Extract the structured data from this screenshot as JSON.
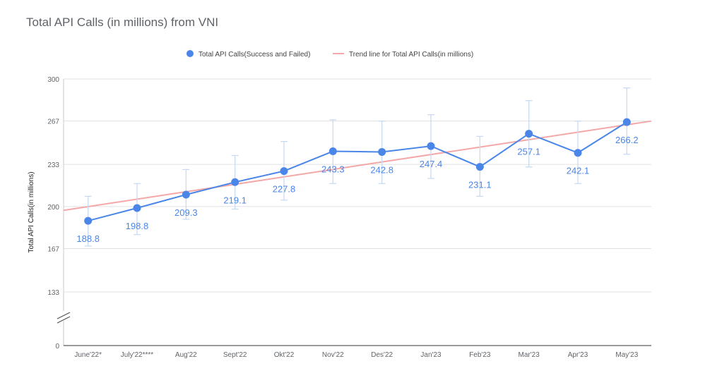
{
  "chart_data": {
    "type": "line",
    "title": "Total API Calls (in millions) from VNI",
    "ylabel": "Total API Calls(in millions)",
    "xlabel": "",
    "categories": [
      "June'22*",
      "July'22****",
      "Aug'22",
      "Sept'22",
      "Okt'22",
      "Nov'22",
      "Des'22",
      "Jan'23",
      "Feb'23",
      "Mar'23",
      "Apr'23",
      "May'23"
    ],
    "series": [
      {
        "name": "Total API Calls(Success and Failed)",
        "color": "#4a86e8",
        "values": [
          188.8,
          198.8,
          209.3,
          219.1,
          227.8,
          243.3,
          242.8,
          247.4,
          231.1,
          257.1,
          242.1,
          266.2
        ],
        "error_low": [
          169,
          178,
          190,
          198,
          205,
          218,
          218,
          222,
          208,
          231,
          218,
          241
        ],
        "error_high": [
          208,
          218,
          229,
          240,
          251,
          268,
          267,
          272,
          255,
          283,
          267,
          293
        ],
        "data_labels": [
          "188.8",
          "198.8",
          "209.3",
          "219.1",
          "227.8",
          "243.3",
          "242.8",
          "247.4",
          "231.1",
          "257.1",
          "242.1",
          "266.2"
        ]
      },
      {
        "name": "Trend line for Total API Calls(in millions)",
        "color": "#f4a7a7",
        "type": "trendline",
        "y_at_left_edge": 197,
        "y_at_right_edge": 267
      }
    ],
    "yticks": [
      "300",
      "267",
      "233",
      "200",
      "167",
      "133",
      "0"
    ],
    "ylim": [
      0,
      300
    ],
    "axis_break": true,
    "grid": true,
    "legend_position": "top"
  }
}
